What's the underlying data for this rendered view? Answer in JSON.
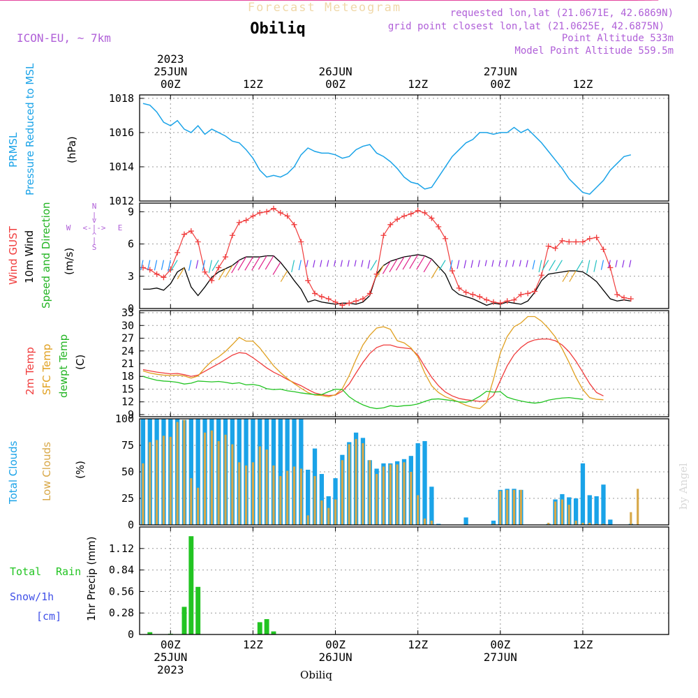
{
  "header": {
    "subtitle": "Forecast Meteogram",
    "location": "Obiliq",
    "model": "ICON-EU, ~ 7km",
    "requested": "requested lon,lat (21.0671E, 42.6869N)",
    "gridpoint": "grid point closest lon,lat (21.0625E, 42.6875N)",
    "point_alt": "Point Altitude 533m",
    "model_alt": "Model Point Altitude 559.5m",
    "credit": "by Angel",
    "footer_location": "Obiliq"
  },
  "time_axis": {
    "top": [
      {
        "label": "2023\n25JUN\n00Z"
      },
      {
        "label": "12Z"
      },
      {
        "label": "26JUN\n00Z"
      },
      {
        "label": "12Z"
      },
      {
        "label": "27JUN\n00Z"
      },
      {
        "label": "12Z"
      }
    ],
    "bottom": [
      {
        "label": "00Z\n25JUN\n2023"
      },
      {
        "label": "12Z"
      },
      {
        "label": "00Z\n26JUN"
      },
      {
        "label": "12Z"
      },
      {
        "label": "00Z\n27JUN"
      },
      {
        "label": "12Z"
      }
    ]
  },
  "colors": {
    "pressure": "#1aa3e8",
    "gust": "#f03c3c",
    "wind": "#000000",
    "wind_dir": "#22b422",
    "temp": "#f03c3c",
    "sfc": "#e0a020",
    "dew": "#22c422",
    "total_clouds": "#1aa3e8",
    "low_clouds": "#d8a848",
    "rain": "#22c422",
    "snow": "#4050e8",
    "purple": "#b060d8",
    "grid": "#999999"
  },
  "panel_labels": {
    "pressure": [
      "PRMSL",
      "Pressure Reduced to MSL",
      "(hPa)"
    ],
    "wind": [
      "Wind GUST",
      "10m Wind",
      "Speed and Direction",
      "(m/s)"
    ],
    "compass": [
      "N",
      "S",
      "W",
      "E"
    ],
    "temp": [
      "2m Temp",
      "SFC Temp",
      "dewpt Temp",
      "(C)"
    ],
    "clouds": [
      "Total Clouds",
      "Low Clouds",
      "(%)"
    ],
    "precip": [
      "Total",
      "Rain",
      "Snow/1h",
      "[cm]",
      "1hr Precip (mm)"
    ]
  },
  "chart_data": [
    {
      "type": "line",
      "name": "pressure",
      "ylabel": "(hPa)",
      "ylim": [
        1012,
        1018.2
      ],
      "yticks": [
        1012,
        1014,
        1016,
        1018
      ],
      "x_hours": [
        -4,
        -3,
        -2,
        -1,
        0,
        1,
        2,
        3,
        4,
        5,
        6,
        7,
        8,
        9,
        10,
        11,
        12,
        13,
        14,
        15,
        16,
        17,
        18,
        19,
        20,
        21,
        22,
        23,
        24,
        25,
        26,
        27,
        28,
        29,
        30,
        31,
        32,
        33,
        34,
        35,
        36,
        37,
        38,
        39,
        40,
        41,
        42,
        43,
        44,
        45,
        46,
        47,
        48,
        49,
        50,
        51,
        52,
        53,
        54,
        55,
        56,
        57,
        58,
        59,
        60,
        61,
        62,
        63,
        64,
        65,
        66,
        67,
        68,
        69,
        70,
        71
      ],
      "series": [
        {
          "name": "PRMSL",
          "values": [
            1017.7,
            1017.6,
            1017.2,
            1016.6,
            1016.4,
            1016.7,
            1016.2,
            1016.0,
            1016.4,
            1015.9,
            1016.2,
            1016.0,
            1015.8,
            1015.5,
            1015.4,
            1015.0,
            1014.5,
            1013.8,
            1013.4,
            1013.5,
            1013.4,
            1013.6,
            1014.0,
            1014.7,
            1015.1,
            1014.9,
            1014.8,
            1014.8,
            1014.7,
            1014.5,
            1014.6,
            1015.0,
            1015.2,
            1015.3,
            1014.8,
            1014.6,
            1014.3,
            1013.9,
            1013.4,
            1013.1,
            1013.0,
            1012.7,
            1012.8,
            1013.4,
            1014.0,
            1014.6,
            1015.0,
            1015.4,
            1015.6,
            1016.0,
            1016.0,
            1015.9,
            1016.0,
            1016.0,
            1016.3,
            1016.0,
            1016.2,
            1015.8,
            1015.4,
            1014.9,
            1014.4,
            1013.9,
            1013.3,
            1012.9,
            1012.5,
            1012.4,
            1012.8,
            1013.2,
            1013.8,
            1014.2,
            1014.6,
            1014.7
          ]
        }
      ]
    },
    {
      "type": "line",
      "name": "wind",
      "ylabel": "(m/s)",
      "ylim": [
        0,
        9.8
      ],
      "yticks": [
        0,
        3,
        6,
        9
      ],
      "x_hours": [
        -4,
        -3,
        -2,
        -1,
        0,
        1,
        2,
        3,
        4,
        5,
        6,
        7,
        8,
        9,
        10,
        11,
        12,
        13,
        14,
        15,
        16,
        17,
        18,
        19,
        20,
        21,
        22,
        23,
        24,
        25,
        26,
        27,
        28,
        29,
        30,
        31,
        32,
        33,
        34,
        35,
        36,
        37,
        38,
        39,
        40,
        41,
        42,
        43,
        44,
        45,
        46,
        47,
        48,
        49,
        50,
        51,
        52,
        53,
        54,
        55,
        56,
        57,
        58,
        59,
        60,
        61,
        62,
        63,
        64,
        65,
        66,
        67,
        68,
        69,
        70,
        71
      ],
      "series": [
        {
          "name": "Wind GUST",
          "values": [
            3.8,
            3.6,
            3.2,
            2.9,
            3.6,
            5.2,
            6.9,
            7.2,
            6.2,
            3.4,
            2.6,
            3.8,
            4.8,
            6.8,
            8.0,
            8.2,
            8.6,
            8.9,
            9.0,
            9.3,
            8.9,
            8.6,
            7.8,
            6.2,
            2.6,
            1.4,
            1.1,
            0.9,
            0.6,
            0.3,
            0.5,
            0.7,
            0.9,
            1.4,
            3.2,
            6.8,
            7.8,
            8.3,
            8.6,
            8.8,
            9.1,
            8.9,
            8.4,
            7.6,
            6.5,
            3.5,
            1.9,
            1.5,
            1.3,
            1.1,
            0.8,
            0.6,
            0.5,
            0.7,
            0.8,
            1.3,
            1.4,
            1.6,
            3.1,
            5.8,
            5.6,
            6.3,
            6.2,
            6.2,
            6.2,
            6.5,
            6.6,
            5.5,
            3.8,
            1.3,
            1.0,
            0.9
          ]
        },
        {
          "name": "10m Wind",
          "values": [
            1.8,
            1.8,
            1.9,
            1.7,
            2.3,
            3.4,
            3.8,
            2.0,
            1.2,
            2.0,
            2.9,
            3.4,
            3.7,
            4.0,
            4.5,
            4.8,
            4.8,
            4.8,
            4.9,
            4.9,
            4.3,
            3.5,
            2.6,
            1.8,
            0.6,
            0.8,
            0.6,
            0.5,
            0.4,
            0.5,
            0.5,
            0.4,
            0.6,
            1.2,
            3.2,
            4.0,
            4.4,
            4.6,
            4.8,
            4.9,
            5.0,
            4.9,
            4.6,
            3.9,
            3.2,
            1.8,
            1.3,
            1.1,
            0.9,
            0.6,
            0.3,
            0.5,
            0.4,
            0.6,
            0.5,
            0.4,
            0.7,
            1.5,
            2.6,
            3.2,
            3.3,
            3.4,
            3.5,
            3.5,
            3.4,
            3.0,
            2.5,
            1.7,
            0.9,
            0.7,
            0.8,
            0.7
          ]
        }
      ]
    },
    {
      "type": "line",
      "name": "temperature",
      "ylabel": "(C)",
      "ylim": [
        8.5,
        33.5
      ],
      "yticks": [
        9,
        12,
        15,
        18,
        21,
        24,
        27,
        30,
        33
      ],
      "x_hours": [
        -4,
        -3,
        -2,
        -1,
        0,
        1,
        2,
        3,
        4,
        5,
        6,
        7,
        8,
        9,
        10,
        11,
        12,
        13,
        14,
        15,
        16,
        17,
        18,
        19,
        20,
        21,
        22,
        23,
        24,
        25,
        26,
        27,
        28,
        29,
        30,
        31,
        32,
        33,
        34,
        35,
        36,
        37,
        38,
        39,
        40,
        41,
        42,
        43,
        44,
        45,
        46,
        47,
        48,
        49,
        50,
        51,
        52,
        53,
        54,
        55,
        56,
        57,
        58,
        59,
        60,
        61,
        62,
        63,
        64,
        65,
        66,
        67,
        68,
        69,
        70,
        71
      ],
      "series": [
        {
          "name": "2m Temp",
          "values": [
            19.6,
            19.3,
            19.0,
            18.8,
            18.6,
            18.7,
            18.4,
            18.0,
            18.3,
            19.2,
            20.1,
            21.0,
            22.0,
            23.0,
            23.6,
            23.4,
            22.4,
            21.2,
            20.0,
            19.0,
            18.2,
            17.3,
            16.5,
            15.8,
            14.9,
            14.1,
            13.7,
            13.5,
            13.6,
            14.5,
            16.2,
            18.8,
            21.3,
            23.4,
            24.8,
            25.4,
            25.4,
            24.9,
            24.7,
            24.5,
            23.0,
            20.3,
            17.8,
            15.8,
            14.3,
            13.4,
            12.8,
            12.5,
            12.3,
            12.1,
            12.2,
            13.5,
            17.0,
            20.5,
            23.1,
            24.8,
            26.0,
            26.6,
            26.8,
            26.8,
            26.4,
            25.4,
            23.8,
            21.6,
            19.0,
            16.3,
            14.2,
            13.4
          ]
        },
        {
          "name": "SFC Temp",
          "values": [
            19.3,
            18.8,
            18.5,
            18.3,
            18.2,
            18.3,
            18.1,
            17.6,
            18.1,
            20.0,
            21.6,
            22.6,
            23.9,
            25.5,
            27.2,
            26.3,
            26.3,
            24.7,
            22.6,
            20.5,
            18.9,
            17.5,
            16.3,
            15.2,
            14.2,
            13.6,
            13.5,
            13.2,
            13.7,
            15.1,
            18.2,
            22.0,
            25.4,
            27.7,
            29.4,
            29.7,
            29.1,
            26.4,
            25.9,
            24.7,
            22.6,
            18.8,
            15.8,
            14.2,
            13.2,
            12.6,
            11.9,
            11.2,
            10.7,
            10.4,
            11.9,
            17.3,
            23.5,
            27.4,
            29.7,
            30.6,
            32.1,
            32.1,
            31.0,
            29.3,
            27.3,
            24.5,
            21.3,
            17.8,
            14.9,
            13.0,
            12.6,
            12.5
          ]
        },
        {
          "name": "dewpt Temp",
          "values": [
            18.0,
            17.5,
            17.1,
            16.9,
            16.8,
            16.6,
            16.2,
            16.4,
            16.9,
            16.8,
            16.7,
            16.8,
            16.6,
            16.3,
            16.5,
            16.0,
            16.1,
            15.8,
            15.1,
            14.9,
            15.0,
            14.6,
            14.4,
            14.1,
            13.9,
            13.7,
            13.7,
            14.4,
            15.0,
            14.9,
            13.2,
            12.1,
            11.3,
            10.7,
            10.4,
            10.6,
            11.1,
            10.9,
            11.1,
            11.2,
            11.5,
            12.1,
            12.6,
            12.7,
            12.5,
            12.3,
            12.0,
            11.9,
            12.4,
            13.3,
            14.5,
            14.3,
            14.4,
            13.1,
            12.6,
            12.2,
            11.9,
            11.7,
            11.9,
            12.4,
            12.7,
            12.9,
            13.0,
            12.8,
            12.6
          ]
        }
      ]
    },
    {
      "type": "bar",
      "name": "clouds",
      "ylabel": "(%)",
      "ylim": [
        0,
        100
      ],
      "yticks": [
        0,
        25,
        50,
        75,
        100
      ],
      "x_hours": [
        -4,
        -3,
        -2,
        -1,
        0,
        1,
        2,
        3,
        4,
        5,
        6,
        7,
        8,
        9,
        10,
        11,
        12,
        13,
        14,
        15,
        16,
        17,
        18,
        19,
        20,
        21,
        22,
        23,
        24,
        25,
        26,
        27,
        28,
        29,
        30,
        31,
        32,
        33,
        34,
        35,
        36,
        37,
        38,
        39,
        40,
        41,
        42,
        43,
        44,
        45,
        46,
        47,
        48,
        49,
        50,
        51,
        52,
        53,
        54,
        55,
        56,
        57,
        58,
        59,
        60,
        61,
        62,
        63,
        64,
        65,
        66,
        67,
        68,
        69,
        70,
        71
      ],
      "series": [
        {
          "name": "Total Clouds",
          "values": [
            100,
            100,
            100,
            100,
            100,
            100,
            99,
            100,
            100,
            100,
            100,
            100,
            100,
            100,
            100,
            100,
            100,
            100,
            100,
            100,
            100,
            100,
            100,
            100,
            52,
            72,
            48,
            27,
            44,
            66,
            78,
            87,
            82,
            61,
            53,
            58,
            58,
            60,
            62,
            65,
            77,
            79,
            36,
            1,
            0,
            0,
            0,
            7,
            0,
            0,
            0,
            4,
            33,
            34,
            34,
            33,
            0,
            0,
            0,
            1,
            24,
            29,
            26,
            25,
            58,
            28,
            27,
            38,
            5,
            0,
            0,
            1
          ]
        },
        {
          "name": "Low Clouds",
          "values": [
            58,
            78,
            80,
            84,
            83,
            97,
            99,
            44,
            35,
            87,
            89,
            79,
            85,
            76,
            59,
            56,
            59,
            74,
            71,
            56,
            46,
            51,
            55,
            53,
            9,
            46,
            23,
            16,
            24,
            61,
            76,
            81,
            77,
            61,
            48,
            55,
            57,
            57,
            59,
            50,
            28,
            6,
            4,
            0,
            0,
            0,
            0,
            0,
            0,
            0,
            0,
            1,
            32,
            33,
            33,
            33,
            0,
            0,
            0,
            2,
            22,
            24,
            19,
            4,
            2,
            2,
            1,
            1,
            0,
            0,
            0,
            12,
            34
          ]
        }
      ]
    },
    {
      "type": "bar",
      "name": "precipitation",
      "ylabel": "1hr Precip (mm)",
      "ylim": [
        0,
        1.4
      ],
      "yticks": [
        0,
        0.28,
        0.56,
        0.84,
        1.12
      ],
      "x_hours": [
        -4,
        -3,
        -2,
        -1,
        0,
        1,
        2,
        3,
        4,
        5,
        6,
        7,
        8,
        9,
        10,
        11,
        12,
        13,
        14,
        15,
        16,
        17,
        18,
        19,
        20,
        21,
        22,
        23,
        24,
        25,
        26,
        27,
        28,
        29,
        30,
        31,
        32,
        33,
        34,
        35,
        36,
        37,
        38,
        39,
        40,
        41,
        42,
        43,
        44,
        45,
        46,
        47,
        48,
        49,
        50,
        51,
        52,
        53,
        54,
        55,
        56,
        57,
        58,
        59,
        60,
        61,
        62,
        63,
        64,
        65,
        66,
        67,
        68,
        69,
        70,
        71
      ],
      "series": [
        {
          "name": "Total Rain",
          "values": [
            0,
            0.03,
            0,
            0,
            0.01,
            0,
            0.36,
            1.28,
            0.62,
            0,
            0,
            0,
            0,
            0,
            0,
            0,
            0,
            0.16,
            0.2,
            0.04,
            0,
            0,
            0,
            0,
            0,
            0,
            0,
            0,
            0,
            0,
            0,
            0,
            0,
            0,
            0,
            0,
            0,
            0,
            0,
            0,
            0,
            0,
            0,
            0,
            0,
            0,
            0,
            0,
            0,
            0,
            0,
            0,
            0,
            0,
            0,
            0,
            0,
            0,
            0,
            0,
            0,
            0,
            0,
            0,
            0,
            0,
            0,
            0,
            0,
            0,
            0,
            0
          ]
        }
      ]
    }
  ]
}
